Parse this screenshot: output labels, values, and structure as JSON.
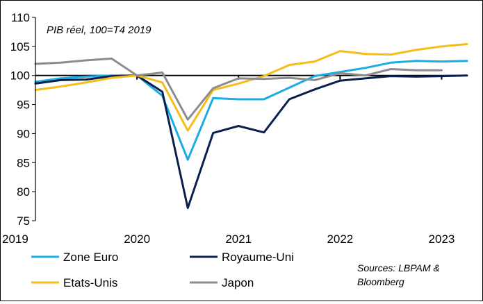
{
  "chart_data": {
    "type": "line",
    "subtitle": "PIB réel, 100=T4 2019",
    "source": [
      "Sources: LBPAM &",
      "Bloomberg"
    ],
    "ylim": [
      75,
      110
    ],
    "yticks": [
      75,
      80,
      85,
      90,
      95,
      100,
      105,
      110
    ],
    "xlim": [
      2019.0,
      2023.25
    ],
    "xticks": [
      2019,
      2020,
      2021,
      2022,
      2023
    ],
    "xtick_labels": [
      "2019",
      "2020",
      "2021",
      "2022",
      "2023"
    ],
    "reference_line": 100,
    "grid": false,
    "legend_position": "bottom",
    "series": [
      {
        "name": "Zone Euro",
        "color": "#1AADE4",
        "x": [
          2019.0,
          2019.25,
          2019.5,
          2019.75,
          2020.0,
          2020.25,
          2020.5,
          2020.75,
          2021.0,
          2021.25,
          2021.5,
          2021.75,
          2022.0,
          2022.25,
          2022.5,
          2022.75,
          2023.0,
          2023.25
        ],
        "values": [
          98.9,
          99.5,
          99.8,
          100.0,
          100.0,
          96.5,
          85.5,
          96.1,
          95.9,
          95.9,
          97.9,
          99.9,
          100.6,
          101.3,
          102.2,
          102.5,
          102.4,
          102.5
        ]
      },
      {
        "name": "Royaume-Uni",
        "color": "#0B1F4F",
        "x": [
          2019.0,
          2019.25,
          2019.5,
          2019.75,
          2020.0,
          2020.25,
          2020.5,
          2020.75,
          2021.0,
          2021.25,
          2021.5,
          2021.75,
          2022.0,
          2022.25,
          2022.5,
          2022.75,
          2023.0,
          2023.25
        ],
        "values": [
          98.6,
          99.2,
          99.3,
          99.9,
          100.0,
          97.2,
          77.2,
          90.1,
          91.3,
          90.2,
          95.9,
          97.6,
          99.1,
          99.5,
          99.9,
          99.8,
          99.9,
          100.0
        ]
      },
      {
        "name": "Etats-Unis",
        "color": "#F5BC1A",
        "x": [
          2019.0,
          2019.25,
          2019.5,
          2019.75,
          2020.0,
          2020.25,
          2020.5,
          2020.75,
          2021.0,
          2021.25,
          2021.5,
          2021.75,
          2022.0,
          2022.25,
          2022.5,
          2022.75,
          2023.0,
          2023.25
        ],
        "values": [
          97.5,
          98.1,
          98.8,
          99.6,
          100.0,
          98.8,
          90.5,
          97.5,
          98.6,
          99.9,
          101.8,
          102.4,
          104.2,
          103.7,
          103.6,
          104.4,
          105.0,
          105.4
        ]
      },
      {
        "name": "Japon",
        "color": "#8C8C8C",
        "x": [
          2019.0,
          2019.25,
          2019.5,
          2019.75,
          2020.0,
          2020.25,
          2020.5,
          2020.75,
          2021.0,
          2021.25,
          2021.5,
          2021.75,
          2022.0,
          2022.25,
          2022.5,
          2022.75,
          2023.0
        ],
        "values": [
          102.0,
          102.2,
          102.6,
          102.9,
          100.0,
          100.5,
          92.4,
          97.8,
          99.5,
          99.4,
          99.6,
          99.2,
          100.4,
          100.0,
          101.1,
          100.9,
          100.9
        ]
      }
    ]
  }
}
